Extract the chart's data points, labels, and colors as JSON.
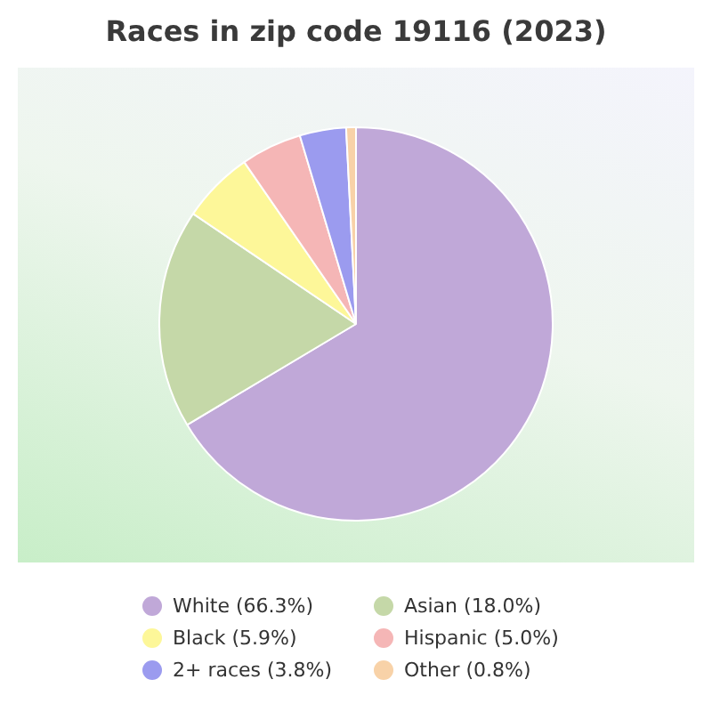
{
  "chart_data": {
    "type": "pie",
    "title": "Races in zip code 19116 (2023)",
    "categories": [
      "White (66.3%)",
      "Asian (18.0%)",
      "Black (5.9%)",
      "Hispanic (5.0%)",
      "2+ races (3.8%)",
      "Other (0.8%)"
    ],
    "values": [
      66.3,
      18.0,
      5.9,
      5.0,
      3.8,
      0.8
    ],
    "colors": [
      "#c0a8d8",
      "#c5d8a8",
      "#fdf799",
      "#f5b6b6",
      "#9b9bef",
      "#f8d2a8"
    ],
    "legend": "bottom"
  }
}
